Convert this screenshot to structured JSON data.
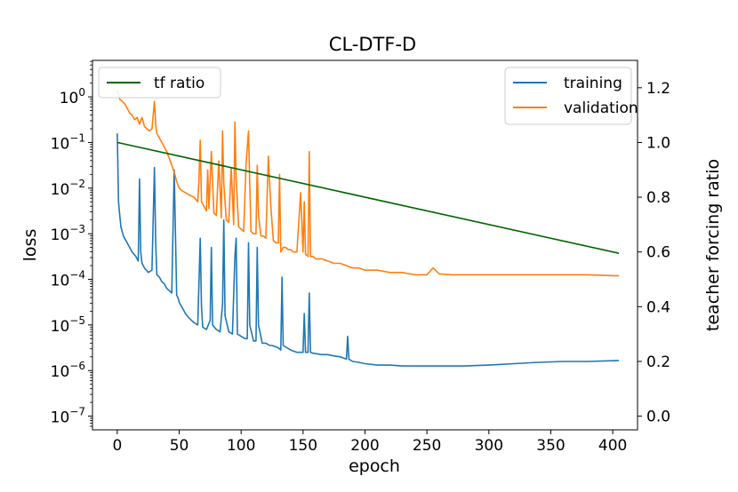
{
  "chart_data": {
    "type": "line",
    "title": "CL-DTF-D",
    "xlabel": "epoch",
    "ylabel": "loss",
    "y2label": "teacher forcing ratio",
    "xlim": [
      -20,
      420
    ],
    "ylim_log10": [
      -7.3,
      0.8
    ],
    "y2lim": [
      -0.05,
      1.3
    ],
    "yscale": "log",
    "x_ticks": [
      0,
      50,
      100,
      150,
      200,
      250,
      300,
      350,
      400
    ],
    "x_tick_labels": [
      "0",
      "50",
      "100",
      "150",
      "200",
      "250",
      "300",
      "350",
      "400"
    ],
    "y_ticks_log10": [
      0,
      -1,
      -2,
      -3,
      -4,
      -5,
      -6,
      -7
    ],
    "y_tick_labels": [
      {
        "base": "10",
        "exp": "0"
      },
      {
        "base": "10",
        "exp": "−1"
      },
      {
        "base": "10",
        "exp": "−2"
      },
      {
        "base": "10",
        "exp": "−3"
      },
      {
        "base": "10",
        "exp": "−4"
      },
      {
        "base": "10",
        "exp": "−5"
      },
      {
        "base": "10",
        "exp": "−6"
      },
      {
        "base": "10",
        "exp": "−7"
      }
    ],
    "y2_ticks": [
      0.0,
      0.2,
      0.4,
      0.6,
      0.8,
      1.0,
      1.2
    ],
    "y2_tick_labels": [
      "0.0",
      "0.2",
      "0.4",
      "0.6",
      "0.8",
      "1.0",
      "1.2"
    ],
    "grid": false,
    "legend_left": {
      "placement": "top-left",
      "entries": [
        "tf ratio"
      ]
    },
    "legend_right": {
      "placement": "top-right",
      "entries": [
        "training",
        "validation"
      ]
    },
    "series": [
      {
        "name": "training",
        "axis": "left",
        "color": "#1f77b4",
        "x": [
          0,
          1,
          2,
          3,
          5,
          8,
          10,
          12,
          15,
          17,
          18,
          19,
          20,
          22,
          25,
          28,
          30,
          31,
          32,
          34,
          36,
          38,
          40,
          44,
          46,
          48,
          49,
          50,
          52,
          55,
          58,
          62,
          65,
          67,
          68,
          69,
          72,
          75,
          76,
          77,
          80,
          83,
          85,
          86,
          87,
          90,
          93,
          95,
          96,
          97,
          100,
          103,
          105,
          106,
          107,
          110,
          112,
          113,
          114,
          117,
          120,
          123,
          125,
          130,
          132,
          133,
          134,
          137,
          140,
          145,
          150,
          151,
          152,
          154,
          155,
          156,
          158,
          165,
          170,
          175,
          180,
          185,
          186,
          187,
          190,
          195,
          200,
          210,
          220,
          230,
          240,
          250,
          260,
          270,
          280,
          300,
          320,
          340,
          360,
          380,
          405
        ],
        "y_log10": [
          -0.8,
          -2.3,
          -2.6,
          -2.85,
          -3.05,
          -3.2,
          -3.3,
          -3.4,
          -3.5,
          -3.6,
          -1.8,
          -3.4,
          -3.65,
          -3.75,
          -3.85,
          -3.8,
          -1.55,
          -3.2,
          -3.9,
          -3.95,
          -4.05,
          -4.1,
          -4.2,
          -4.3,
          -1.6,
          -4.35,
          -4.4,
          -4.5,
          -4.6,
          -4.75,
          -4.85,
          -4.95,
          -5.0,
          -3.1,
          -4.6,
          -5.05,
          -5.1,
          -4.9,
          -3.3,
          -5.0,
          -5.1,
          -5.15,
          -4.55,
          -2.7,
          -4.8,
          -5.15,
          -5.2,
          -3.5,
          -3.1,
          -5.2,
          -5.25,
          -5.3,
          -5.3,
          -3.2,
          -5.0,
          -5.35,
          -5.35,
          -3.3,
          -5.0,
          -5.4,
          -5.4,
          -5.45,
          -5.45,
          -5.5,
          -5.55,
          -3.95,
          -5.45,
          -5.5,
          -5.55,
          -5.6,
          -5.6,
          -4.75,
          -5.6,
          -5.6,
          -4.3,
          -5.6,
          -5.62,
          -5.65,
          -5.65,
          -5.68,
          -5.7,
          -5.75,
          -5.25,
          -5.75,
          -5.8,
          -5.82,
          -5.85,
          -5.88,
          -5.88,
          -5.9,
          -5.9,
          -5.9,
          -5.9,
          -5.9,
          -5.9,
          -5.88,
          -5.85,
          -5.82,
          -5.8,
          -5.8,
          -5.78
        ]
      },
      {
        "name": "validation",
        "axis": "left",
        "color": "#ff7f0e",
        "x": [
          0,
          2,
          4,
          6,
          8,
          10,
          12,
          14,
          16,
          18,
          20,
          22,
          24,
          26,
          28,
          30,
          31,
          32,
          34,
          36,
          38,
          40,
          42,
          44,
          46,
          48,
          50,
          52,
          55,
          58,
          62,
          65,
          66,
          67,
          68,
          70,
          72,
          73,
          74,
          76,
          78,
          80,
          82,
          84,
          85,
          86,
          88,
          90,
          92,
          94,
          95,
          96,
          98,
          100,
          102,
          104,
          106,
          107,
          108,
          110,
          112,
          113,
          114,
          116,
          118,
          120,
          122,
          124,
          126,
          128,
          130,
          131,
          132,
          134,
          136,
          138,
          140,
          142,
          145,
          148,
          150,
          151,
          152,
          154,
          155,
          156,
          158,
          160,
          165,
          170,
          175,
          180,
          185,
          190,
          195,
          200,
          210,
          220,
          230,
          240,
          250,
          255,
          260,
          270,
          280,
          290,
          300,
          320,
          340,
          360,
          380,
          400,
          405
        ],
        "y_log10": [
          0.15,
          -0.05,
          -0.1,
          -0.15,
          -0.25,
          -0.35,
          -0.4,
          -0.5,
          -0.45,
          -0.6,
          -0.45,
          -0.65,
          -0.7,
          -0.75,
          -0.7,
          -0.1,
          -0.6,
          -0.8,
          -0.9,
          -1.0,
          -1.1,
          -1.2,
          -1.35,
          -1.5,
          -1.65,
          -1.85,
          -2.0,
          -2.05,
          -2.1,
          -2.15,
          -2.2,
          -2.3,
          -1.8,
          -0.95,
          -2.3,
          -2.4,
          -2.5,
          -1.6,
          -2.45,
          -1.2,
          -2.55,
          -2.6,
          -1.4,
          -2.65,
          -0.75,
          -1.9,
          -2.7,
          -2.75,
          -1.55,
          -2.8,
          -0.55,
          -1.8,
          -2.85,
          -2.9,
          -2.95,
          -1.45,
          -0.75,
          -1.95,
          -2.95,
          -3.0,
          -3.0,
          -1.5,
          -2.6,
          -3.05,
          -3.05,
          -3.1,
          -1.3,
          -2.4,
          -3.15,
          -3.2,
          -3.2,
          -1.7,
          -3.4,
          -3.3,
          -3.3,
          -3.35,
          -3.35,
          -3.4,
          -3.4,
          -2.1,
          -3.4,
          -2.3,
          -3.45,
          -3.5,
          -1.2,
          -3.5,
          -3.5,
          -3.55,
          -3.55,
          -3.6,
          -3.65,
          -3.65,
          -3.7,
          -3.75,
          -3.75,
          -3.8,
          -3.8,
          -3.85,
          -3.85,
          -3.9,
          -3.9,
          -3.75,
          -3.88,
          -3.9,
          -3.9,
          -3.9,
          -3.9,
          -3.9,
          -3.9,
          -3.9,
          -3.9,
          -3.92,
          -3.92
        ]
      },
      {
        "name": "tf ratio",
        "axis": "right",
        "color": "#006400",
        "x": [
          0,
          405
        ],
        "y": [
          1.0,
          0.595
        ]
      }
    ]
  }
}
